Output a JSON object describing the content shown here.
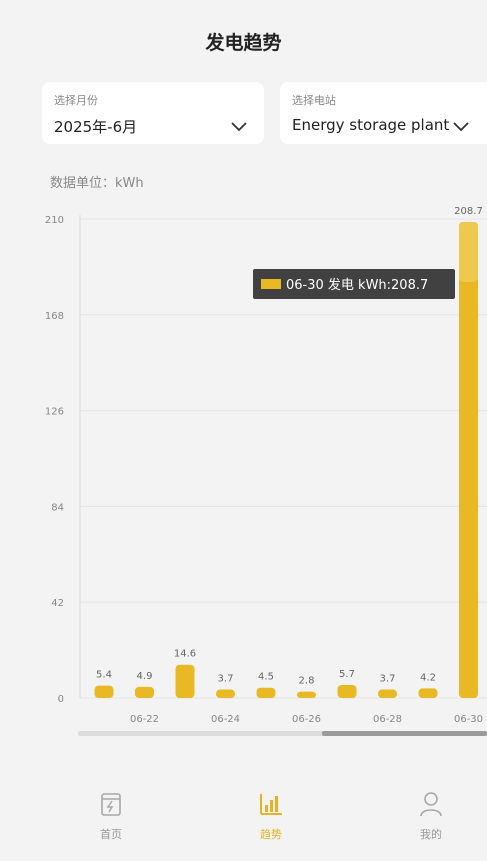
{
  "page": {
    "title": "发电趋势"
  },
  "month_select": {
    "label": "选择月份",
    "value": "2025年-6月"
  },
  "station_select": {
    "label": "选择电站",
    "value": "Energy storage plant"
  },
  "unit_label": "数据单位：kWh",
  "tooltip": {
    "text": "06-30 发电 kWh:208.7"
  },
  "colors": {
    "bar": "#e8b925",
    "bar_top": "#f3d36a",
    "active_tab": "#e6b325"
  },
  "chart_data": {
    "type": "bar",
    "categories": [
      "06-21",
      "06-22",
      "06-23",
      "06-24",
      "06-25",
      "06-26",
      "06-27",
      "06-28",
      "06-29",
      "06-30"
    ],
    "x_tick_labels": [
      "06-22",
      "06-24",
      "06-26",
      "06-28",
      "06-30"
    ],
    "series": [
      {
        "values": [
          5.4,
          4.9,
          14.6,
          3.7,
          4.5,
          2.8,
          5.7,
          3.7,
          4.2,
          208.7
        ]
      }
    ],
    "value_labels": [
      "5.4",
      "4.9",
      "14.6",
      "3.7",
      "4.5",
      "2.8",
      "5.7",
      "3.7",
      "4.2",
      "208.7"
    ],
    "y_ticks": [
      "0",
      "42",
      "84",
      "126",
      "168",
      "210"
    ],
    "ylim": [
      0,
      210
    ],
    "grid": true
  },
  "tabs": [
    {
      "label": "首页",
      "icon": "home-bolt-icon",
      "active": false
    },
    {
      "label": "趋势",
      "icon": "bar-chart-icon",
      "active": true
    },
    {
      "label": "我的",
      "icon": "user-icon",
      "active": false
    }
  ]
}
